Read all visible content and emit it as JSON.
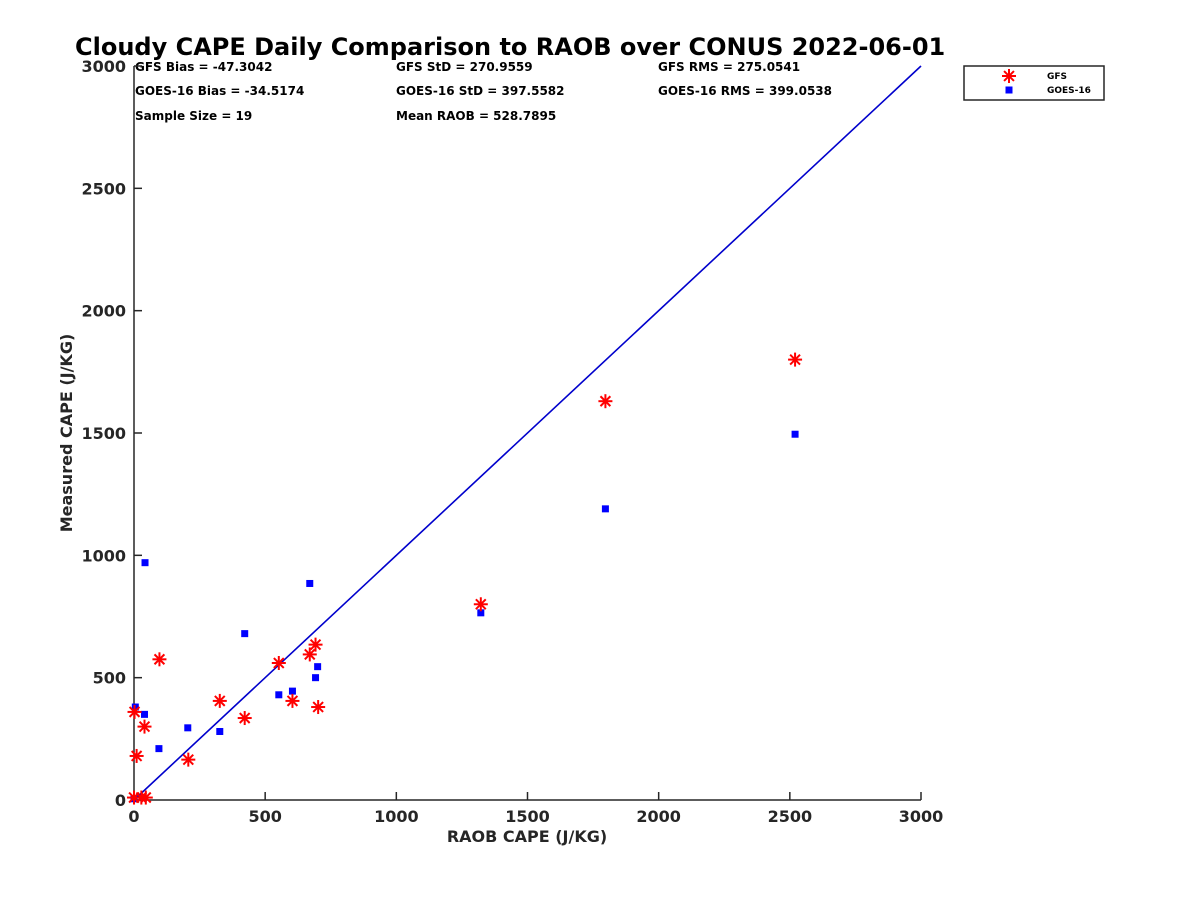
{
  "chart_data": {
    "type": "scatter",
    "title": "Cloudy CAPE Daily Comparison to RAOB over CONUS 2022-06-01",
    "xlabel": "RAOB CAPE (J/KG)",
    "ylabel": "Measured CAPE (J/KG)",
    "xlim": [
      0,
      3000
    ],
    "ylim": [
      0,
      3000
    ],
    "xticks": [
      0,
      500,
      1000,
      1500,
      2000,
      2500,
      3000
    ],
    "yticks": [
      0,
      500,
      1000,
      1500,
      2000,
      2500,
      3000
    ],
    "xtick_labels": [
      "0",
      "500",
      "1000",
      "1500",
      "2000",
      "2500",
      "3000"
    ],
    "ytick_labels": [
      "0",
      "500",
      "1000",
      "1500",
      "2000",
      "2500",
      "3000"
    ],
    "grid": false,
    "legend_position": "top-right, outside plot",
    "reference_line": {
      "name": "1:1 line",
      "x": [
        0,
        3000
      ],
      "y": [
        0,
        3000
      ],
      "color": "#0000cc"
    },
    "stats": [
      "GFS Bias = -47.3042",
      "GFS StD = 270.9559",
      "GFS RMS = 275.0541",
      "GOES-16 Bias = -34.5174",
      "GOES-16 StD = 397.5582",
      "GOES-16 RMS = 399.0538",
      "Sample Size = 19",
      "Mean RAOB = 528.7895"
    ],
    "series": [
      {
        "name": "GFS",
        "marker": "asterisk",
        "color": "#ff0000",
        "x": [
          0,
          2,
          10,
          28,
          45,
          40,
          97,
          207,
          327,
          422,
          552,
          604,
          670,
          692,
          702,
          1322,
          1797,
          2520
        ],
        "y": [
          10,
          360,
          180,
          10,
          10,
          300,
          575,
          165,
          405,
          335,
          560,
          405,
          595,
          635,
          380,
          800,
          1630,
          1800
        ]
      },
      {
        "name": "GOES-16",
        "marker": "square",
        "color": "#0000ff",
        "x": [
          0,
          5,
          40,
          42,
          95,
          205,
          327,
          422,
          552,
          604,
          670,
          692,
          700,
          1322,
          1797,
          2520
        ],
        "y": [
          5,
          380,
          350,
          970,
          210,
          295,
          280,
          680,
          430,
          445,
          885,
          500,
          545,
          765,
          1190,
          1495
        ]
      }
    ]
  },
  "legend": {
    "items": [
      {
        "label": "GFS",
        "marker": "asterisk",
        "color": "#ff0000"
      },
      {
        "label": "GOES-16",
        "marker": "square",
        "color": "#0000ff"
      }
    ]
  }
}
